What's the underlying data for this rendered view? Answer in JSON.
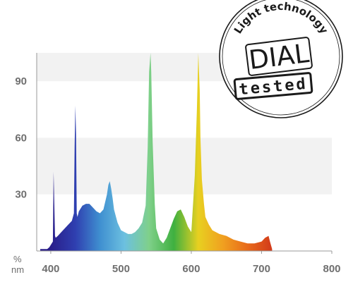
{
  "chart_data": {
    "type": "area",
    "title": "",
    "xlabel": "",
    "ylabel": "",
    "y_unit": "%",
    "x_unit": "nm",
    "xlim": [
      380,
      800
    ],
    "ylim": [
      0,
      105
    ],
    "x_ticks": [
      400,
      500,
      600,
      700,
      800
    ],
    "y_ticks": [
      30,
      60,
      90
    ],
    "grid": "alternating light gray horizontal bands",
    "legend": "none",
    "fill": "visible-spectrum gradient (violet to red)",
    "series": [
      {
        "values_x": [
          385,
          395,
          398,
          403,
          404,
          405,
          406,
          407,
          410,
          415,
          420,
          425,
          430,
          433,
          434,
          435,
          436,
          437,
          438,
          440,
          445,
          450,
          455,
          460,
          465,
          470,
          475,
          480,
          482,
          484,
          486,
          488,
          490,
          495,
          500,
          505,
          510,
          515,
          520,
          525,
          530,
          535,
          538,
          540,
          542,
          543,
          545,
          548,
          550,
          555,
          560,
          565,
          570,
          575,
          580,
          585,
          590,
          595,
          600,
          605,
          608,
          610,
          612,
          613,
          615,
          618,
          620,
          625,
          630,
          640,
          650,
          660,
          670,
          680,
          690,
          700,
          705,
          710,
          712,
          715
        ],
        "values_y": [
          1,
          1,
          2,
          5,
          42,
          25,
          8,
          7,
          8,
          10,
          12,
          14,
          16,
          20,
          55,
          77,
          62,
          20,
          18,
          21,
          24,
          25,
          25,
          23,
          21,
          20,
          22,
          30,
          35,
          37,
          33,
          28,
          22,
          15,
          11,
          10,
          9,
          9,
          10,
          12,
          15,
          24,
          55,
          95,
          105,
          95,
          58,
          25,
          12,
          6,
          4,
          7,
          12,
          17,
          21,
          22,
          18,
          13,
          10,
          40,
          75,
          105,
          85,
          60,
          38,
          25,
          18,
          14,
          11,
          9,
          8,
          6,
          5,
          4,
          4,
          5,
          7,
          8,
          5,
          1
        ]
      }
    ]
  },
  "axis": {
    "y_unit": "%",
    "x_unit": "nm",
    "y_ticks": [
      "30",
      "60",
      "90"
    ],
    "x_ticks": [
      "400",
      "500",
      "600",
      "700",
      "800"
    ]
  },
  "badge": {
    "arc_text": "Light technology",
    "logo_text": "DIAL",
    "stamp_text": "tested"
  },
  "colors": {
    "band": "#f2f2f2",
    "axis": "#9a9a9a",
    "tick_text": "#6f6f6f",
    "badge_ink": "#1a1a1a",
    "spectrum": [
      "#2a1e8a",
      "#2f3fb0",
      "#3f8fd0",
      "#6cc0e0",
      "#7fd08a",
      "#3fb040",
      "#e8d020",
      "#f0a020",
      "#e86a1a",
      "#d23a1a"
    ]
  }
}
